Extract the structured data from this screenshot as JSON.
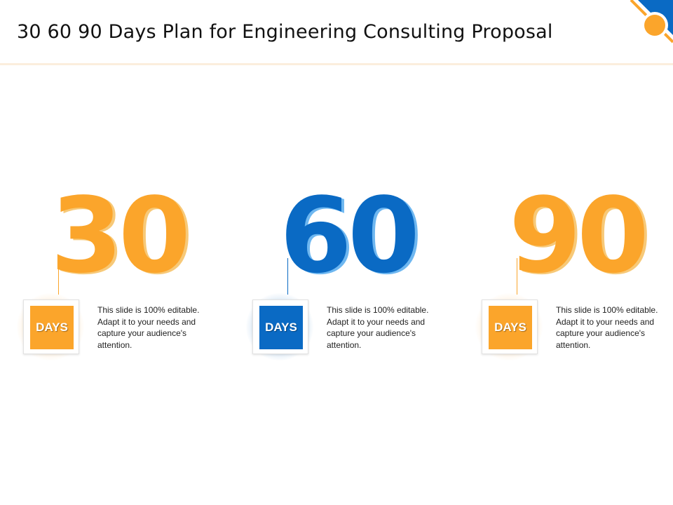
{
  "slide": {
    "title": "30 60 90 Days Plan for Engineering Consulting Proposal"
  },
  "colors": {
    "orange": "#fba52b",
    "orange_shadow": "#f7c46a",
    "blue": "#0a6ac4",
    "blue_shadow": "#5fb0ef",
    "header_rule": "#fbeedd"
  },
  "plan": [
    {
      "number": "30",
      "label": "DAYS",
      "description": "This slide is 100% editable. Adapt it to your needs and capture your audience's attention.",
      "accent": "orange"
    },
    {
      "number": "60",
      "label": "DAYS",
      "description": "This slide is 100% editable. Adapt it to your needs and capture your audience's attention.",
      "accent": "blue"
    },
    {
      "number": "90",
      "label": "DAYS",
      "description": "This slide is 100% editable. Adapt it to your needs and capture your audience's attention.",
      "accent": "orange"
    }
  ]
}
